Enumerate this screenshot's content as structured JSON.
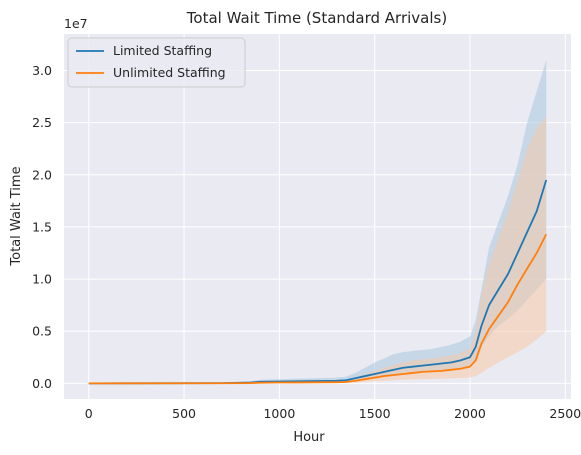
{
  "chart_data": {
    "type": "line",
    "title": "Total Wait Time (Standard Arrivals)",
    "xlabel": "Hour",
    "ylabel": "Total Wait Time",
    "y_offset_label": "1e7",
    "xlim": [
      -130,
      2530
    ],
    "ylim": [
      -1500000,
      33500000
    ],
    "xticks": [
      0,
      500,
      1000,
      1500,
      2000,
      2500
    ],
    "xtick_labels": [
      "0",
      "500",
      "1000",
      "1500",
      "2000",
      "2500"
    ],
    "yticks": [
      0,
      5000000,
      10000000,
      15000000,
      20000000,
      25000000,
      30000000
    ],
    "ytick_labels": [
      "0.0",
      "0.5",
      "1.0",
      "1.5",
      "2.0",
      "2.5",
      "3.0"
    ],
    "grid": true,
    "legend_position": "upper-left",
    "series": [
      {
        "name": "Limited Staffing",
        "color": "#1f77b4",
        "band_color": "#a8c6e0",
        "x": [
          0,
          700,
          850,
          900,
          1000,
          1100,
          1200,
          1300,
          1350,
          1400,
          1450,
          1500,
          1550,
          1600,
          1650,
          1700,
          1750,
          1800,
          1850,
          1900,
          1950,
          2000,
          2030,
          2060,
          2100,
          2150,
          2200,
          2250,
          2300,
          2350,
          2400
        ],
        "y": [
          0,
          20000,
          80000,
          150000,
          180000,
          200000,
          220000,
          250000,
          300000,
          500000,
          700000,
          900000,
          1100000,
          1300000,
          1500000,
          1600000,
          1700000,
          1800000,
          1900000,
          2000000,
          2200000,
          2500000,
          3500000,
          5500000,
          7500000,
          9000000,
          10500000,
          12500000,
          14500000,
          16500000,
          19500000
        ],
        "lower": [
          0,
          0,
          20000,
          60000,
          80000,
          90000,
          100000,
          120000,
          150000,
          250000,
          400000,
          550000,
          700000,
          850000,
          1000000,
          1100000,
          1150000,
          1200000,
          1250000,
          1350000,
          1500000,
          1700000,
          2300000,
          3500000,
          4500000,
          5500000,
          6200000,
          7000000,
          8000000,
          9000000,
          10000000
        ],
        "upper": [
          0,
          60000,
          200000,
          350000,
          400000,
          450000,
          500000,
          550000,
          650000,
          1000000,
          1500000,
          2000000,
          2400000,
          2800000,
          3000000,
          3100000,
          3200000,
          3300000,
          3500000,
          3700000,
          4000000,
          4500000,
          6000000,
          9000000,
          13000000,
          15500000,
          18000000,
          21000000,
          25000000,
          28000000,
          31000000
        ]
      },
      {
        "name": "Unlimited Staffing",
        "color": "#ff7f0e",
        "band_color": "#f6c9a8",
        "x": [
          0,
          700,
          850,
          900,
          1000,
          1100,
          1200,
          1300,
          1350,
          1400,
          1450,
          1500,
          1550,
          1600,
          1650,
          1700,
          1750,
          1800,
          1850,
          1900,
          1950,
          2000,
          2030,
          2060,
          2100,
          2150,
          2200,
          2250,
          2300,
          2350,
          2400
        ],
        "y": [
          0,
          10000,
          30000,
          60000,
          80000,
          90000,
          100000,
          110000,
          130000,
          250000,
          400000,
          550000,
          700000,
          800000,
          900000,
          1000000,
          1100000,
          1150000,
          1200000,
          1300000,
          1400000,
          1600000,
          2200000,
          3800000,
          5200000,
          6500000,
          7800000,
          9500000,
          11000000,
          12500000,
          14300000
        ],
        "lower": [
          0,
          0,
          0,
          10000,
          20000,
          25000,
          30000,
          35000,
          40000,
          80000,
          150000,
          200000,
          250000,
          300000,
          350000,
          380000,
          400000,
          420000,
          450000,
          480000,
          500000,
          550000,
          700000,
          1000000,
          1500000,
          2000000,
          2500000,
          3000000,
          3500000,
          4200000,
          5000000
        ],
        "upper": [
          0,
          30000,
          90000,
          150000,
          200000,
          230000,
          260000,
          300000,
          350000,
          600000,
          900000,
          1200000,
          1500000,
          1800000,
          2000000,
          2200000,
          2300000,
          2400000,
          2500000,
          2700000,
          2900000,
          3400000,
          5000000,
          8500000,
          11500000,
          14000000,
          16500000,
          19500000,
          22500000,
          24500000,
          25500000
        ]
      }
    ]
  }
}
